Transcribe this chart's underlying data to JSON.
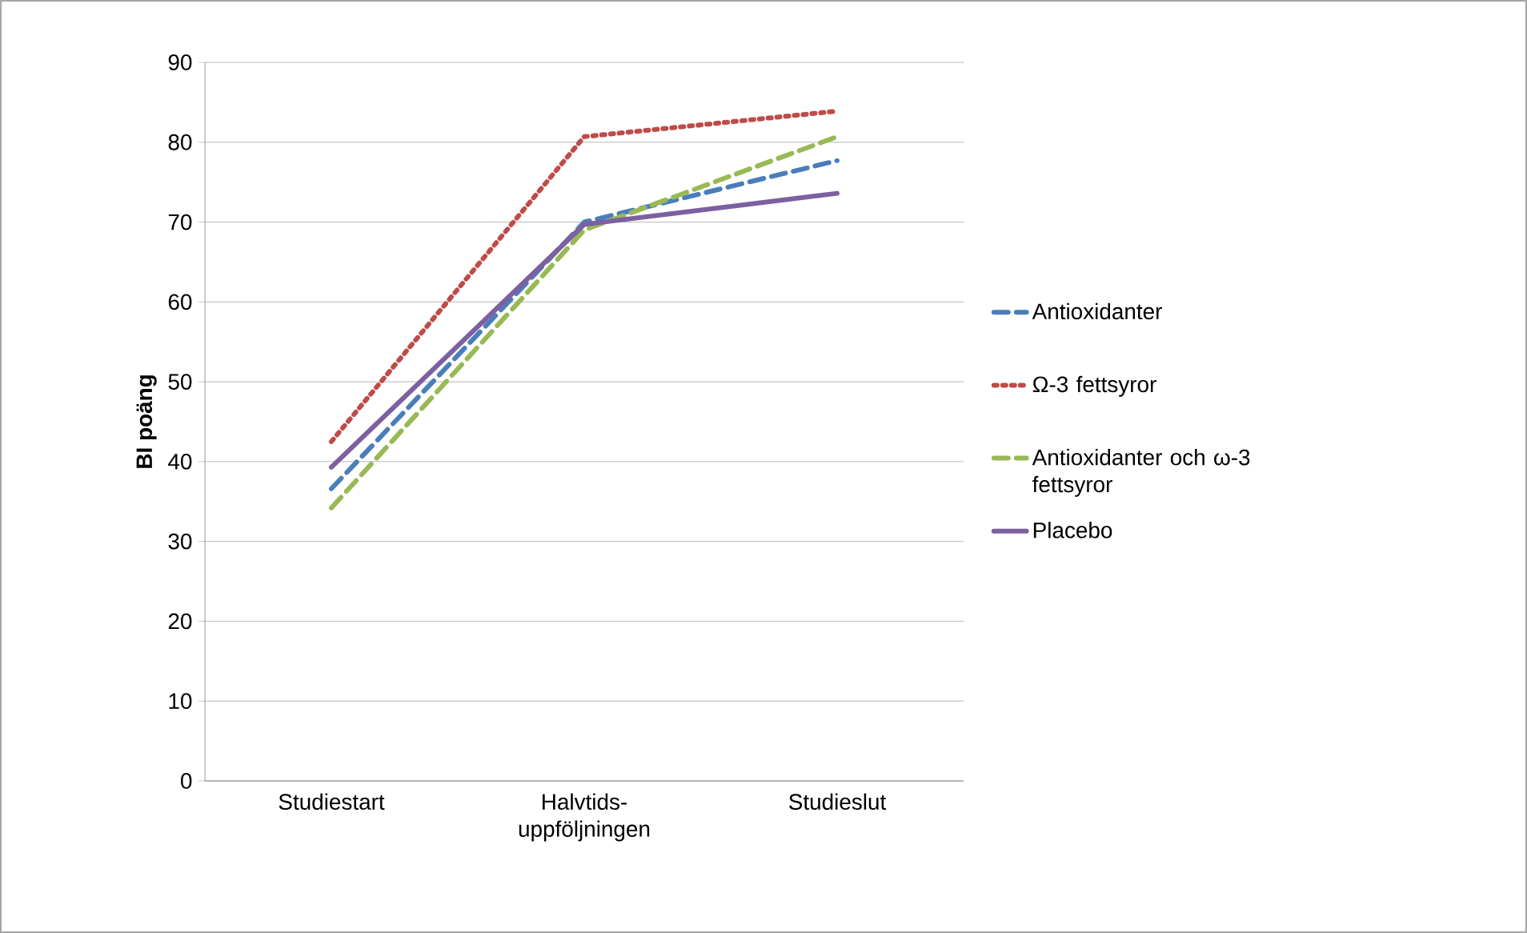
{
  "chart_data": {
    "type": "line",
    "ylabel": "BI poäng",
    "categories": [
      "Studiestart",
      "Halvtids-uppföljningen",
      "Studieslut"
    ],
    "series": [
      {
        "name": "Antioxidanter",
        "color": "#4a7ebb",
        "line_style": "dashed",
        "values": [
          36.6,
          70.0,
          77.7
        ]
      },
      {
        "name": "Ω-3 fettsyror",
        "color": "#be4b48",
        "line_style": "dotted",
        "values": [
          42.5,
          80.7,
          83.9
        ]
      },
      {
        "name": "Antioxidanter och ω-3 fettsyror",
        "color": "#98b954",
        "line_style": "dashed",
        "values": [
          34.2,
          69.0,
          80.7
        ]
      },
      {
        "name": "Placebo",
        "color": "#7d60a0",
        "line_style": "solid",
        "values": [
          39.3,
          69.7,
          73.6
        ]
      }
    ],
    "ylim": [
      0,
      90
    ],
    "yticks": [
      0,
      10,
      20,
      30,
      40,
      50,
      60,
      70,
      80,
      90
    ],
    "grid": "y",
    "legend": "right",
    "marker": "none"
  }
}
